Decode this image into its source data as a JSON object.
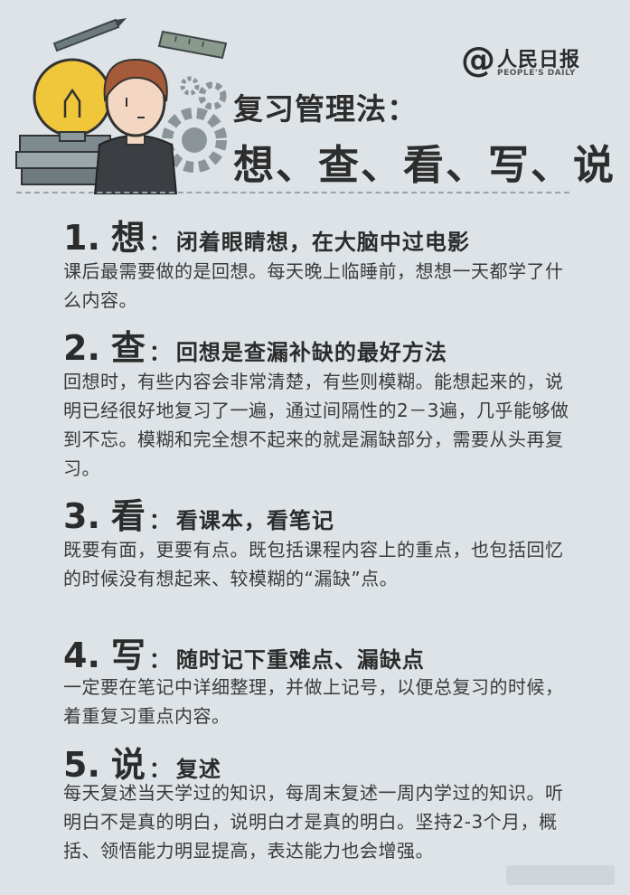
{
  "logo": {
    "mark": "@",
    "name_cn": "人民日报",
    "name_en": "PEOPLE'S DAILY"
  },
  "title": {
    "line1": "复习管理法：",
    "line2": "想、查、看、写、说"
  },
  "sections": [
    {
      "number": "1.",
      "keyword": "想",
      "colon": "：",
      "subtitle": "闭着眼睛想，在大脑中过电影",
      "body": "课后最需要做的是回想。每天晚上临睡前，想想一天都学了什么内容。"
    },
    {
      "number": "2.",
      "keyword": "查",
      "colon": "：",
      "subtitle": "回想是查漏补缺的最好方法",
      "body": " 回想时，有些内容会非常清楚，有些则模糊。能想起来的，说明已经很好地复习了一遍，通过间隔性的2－3遍，几乎能够做到不忘。模糊和完全想不起来的就是漏缺部分，需要从头再复习。"
    },
    {
      "number": "3.",
      "keyword": "看",
      "colon": "：",
      "subtitle": "看课本，看笔记",
      "body": " 既要有面，更要有点。既包括课程内容上的重点，也包括回忆的时候没有想起来、较模糊的“漏缺”点。"
    },
    {
      "number": "4.",
      "keyword": "写",
      "colon": "：",
      "subtitle": "随时记下重难点、漏缺点",
      "body": "一定要在笔记中详细整理，并做上记号，以便总复习的时候，着重复习重点内容。"
    },
    {
      "number": "5.",
      "keyword": "说",
      "colon": "：",
      "subtitle": "复述",
      "body": "每天复述当天学过的知识，每周末复述一周内学过的知识。听明白不是真的明白，说明白才是真的明白。坚持2-3个月，概括、领悟能力明显提高，表达能力也会增强。"
    }
  ],
  "icons": [
    "pencil-icon",
    "ruler-icon",
    "lightbulb-icon",
    "books-icon",
    "student-avatar",
    "gear-icon"
  ],
  "colors": {
    "background": "#dde3e6",
    "text": "#2f2f2f",
    "bulb": "#f0c63a",
    "gear": "#8b9599"
  }
}
